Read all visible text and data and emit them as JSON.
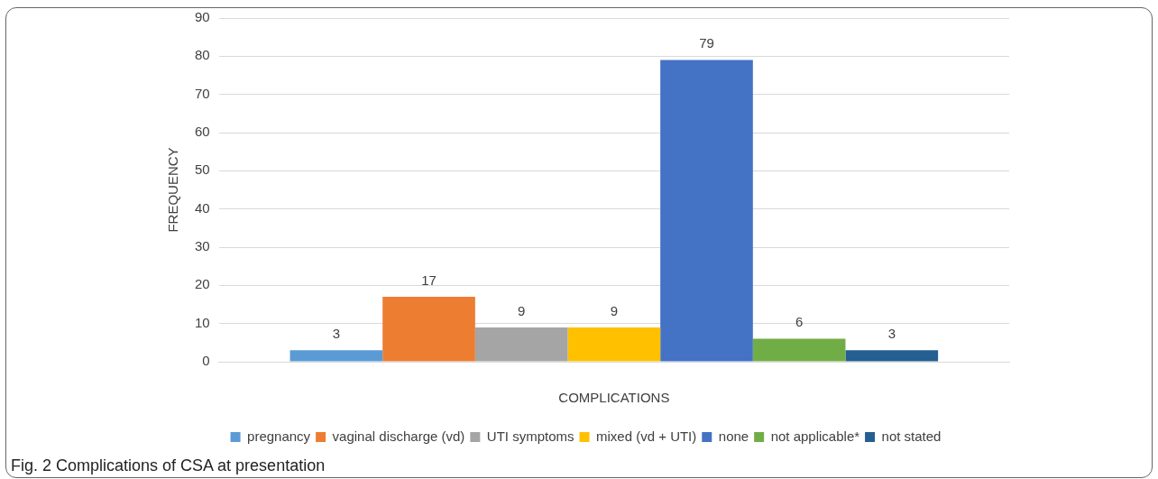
{
  "chart_data": {
    "type": "bar",
    "xlabel": "COMPLICATIONS",
    "ylabel": "FREQUENCY",
    "categories": [
      null
    ],
    "series": [
      {
        "name": "pregnancy",
        "color": "#5b9bd5",
        "values": [
          3
        ]
      },
      {
        "name": "vaginal discharge (vd)",
        "color": "#ed7d31",
        "values": [
          17
        ]
      },
      {
        "name": "UTI symptoms",
        "color": "#a5a5a5",
        "values": [
          9
        ]
      },
      {
        "name": "mixed (vd + UTI)",
        "color": "#ffc000",
        "values": [
          9
        ]
      },
      {
        "name": "none",
        "color": "#4472c4",
        "values": [
          79
        ]
      },
      {
        "name": "not applicable*",
        "color": "#70ad47",
        "values": [
          6
        ]
      },
      {
        "name": "not stated",
        "color": "#255e91",
        "values": [
          3
        ]
      }
    ],
    "ylim": [
      0,
      90
    ],
    "yticks": [
      0,
      10,
      20,
      30,
      40,
      50,
      60,
      70,
      80,
      90
    ],
    "grid": "y",
    "legend": "bottom",
    "data_labels": true,
    "annotations": [
      "Fig. 2 Complications of CSA at presentation"
    ]
  }
}
